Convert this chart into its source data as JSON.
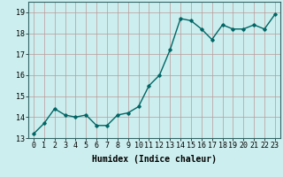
{
  "x": [
    0,
    1,
    2,
    3,
    4,
    5,
    6,
    7,
    8,
    9,
    10,
    11,
    12,
    13,
    14,
    15,
    16,
    17,
    18,
    19,
    20,
    21,
    22,
    23
  ],
  "y": [
    13.2,
    13.7,
    14.4,
    14.1,
    14.0,
    14.1,
    13.6,
    13.6,
    14.1,
    14.2,
    14.5,
    15.5,
    16.0,
    17.2,
    18.7,
    18.6,
    18.2,
    17.7,
    18.4,
    18.2,
    18.2,
    18.4,
    18.2,
    18.9
  ],
  "xlabel": "Humidex (Indice chaleur)",
  "xlim": [
    -0.5,
    23.5
  ],
  "ylim": [
    13.0,
    19.5
  ],
  "yticks": [
    13,
    14,
    15,
    16,
    17,
    18,
    19
  ],
  "xticks": [
    0,
    1,
    2,
    3,
    4,
    5,
    6,
    7,
    8,
    9,
    10,
    11,
    12,
    13,
    14,
    15,
    16,
    17,
    18,
    19,
    20,
    21,
    22,
    23
  ],
  "line_color": "#006666",
  "marker": "D",
  "marker_size": 1.8,
  "bg_color": "#cceeee",
  "grid_color": "#bb9999",
  "xlabel_fontsize": 7,
  "tick_fontsize": 6,
  "line_width": 1.0
}
